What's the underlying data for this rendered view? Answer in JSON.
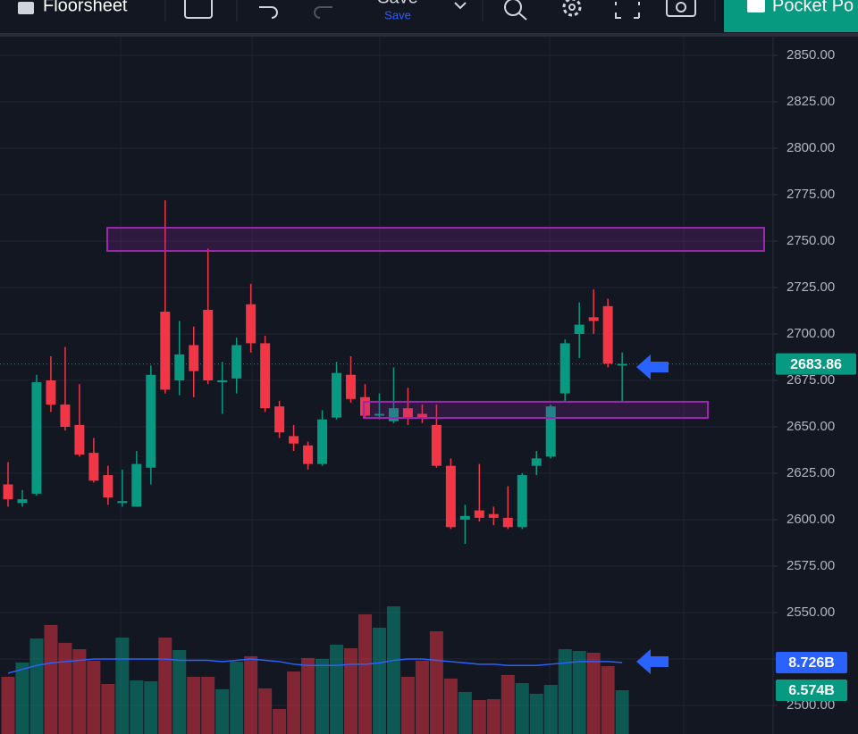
{
  "toolbar": {
    "floorsheet": "Floorsheet",
    "save_title": "Save",
    "save_subtitle": "Save",
    "pocket": "Pocket Po"
  },
  "chart_data": {
    "type": "candlestick",
    "open": [
      2619,
      2609,
      2614,
      2675,
      2662,
      2651,
      2636,
      2624,
      2609,
      2607,
      2628,
      2712,
      2675,
      2694,
      2713,
      2674,
      2676,
      2716,
      2695,
      2661,
      2645,
      2640,
      2630,
      2655,
      2678,
      2666,
      2656,
      2653,
      2660,
      2657,
      2651,
      2629,
      2600,
      2605,
      2603,
      2601,
      2596,
      2629,
      2634,
      2668,
      2700,
      2709,
      2715,
      2683
    ],
    "high": [
      2631,
      2616,
      2678,
      2688,
      2693,
      2673,
      2644,
      2629,
      2627,
      2637,
      2683,
      2772,
      2707,
      2704,
      2746,
      2685,
      2698,
      2727,
      2699,
      2664,
      2651,
      2642,
      2659,
      2685,
      2688,
      2673,
      2668,
      2682,
      2671,
      2662,
      2662,
      2633,
      2608,
      2630,
      2607,
      2618,
      2625,
      2637,
      2662,
      2697,
      2717,
      2724,
      2719,
      2690
    ],
    "low": [
      2607,
      2607,
      2613,
      2658,
      2648,
      2634,
      2620,
      2608,
      2607,
      2607,
      2619,
      2668,
      2667,
      2666,
      2673,
      2657,
      2668,
      2690,
      2658,
      2644,
      2637,
      2627,
      2629,
      2654,
      2663,
      2655,
      2654,
      2652,
      2651,
      2652,
      2628,
      2595,
      2587,
      2599,
      2597,
      2595,
      2595,
      2624,
      2633,
      2664,
      2687,
      2700,
      2682,
      2663
    ],
    "close": [
      2611,
      2611,
      2674,
      2662,
      2650,
      2635,
      2621,
      2612,
      2610,
      2630,
      2678,
      2670,
      2689,
      2680,
      2675,
      2675,
      2694,
      2695,
      2660,
      2647,
      2641,
      2630,
      2654,
      2679,
      2665,
      2656,
      2657,
      2660,
      2655,
      2655,
      2629,
      2596,
      2602,
      2601,
      2601,
      2596,
      2624,
      2633,
      2661,
      2695,
      2705,
      2707,
      2684,
      2683.86
    ],
    "value_labels": [
      null,
      null,
      null,
      null,
      null,
      null,
      null,
      null,
      null,
      null,
      null,
      null,
      null,
      null,
      null,
      null,
      null,
      null,
      null,
      null,
      null,
      null,
      null,
      null,
      null,
      null,
      null,
      null,
      null,
      null,
      null,
      null,
      null,
      null,
      null,
      null,
      null,
      null,
      null,
      null,
      null,
      null,
      null,
      "2683.86"
    ],
    "ylim": [
      2484.6,
      2860.6
    ],
    "yticks": [
      {
        "value": 2500,
        "label": "2500.00"
      },
      {
        "value": 2525,
        "label": "2525.00"
      },
      {
        "value": 2550,
        "label": "2550.00"
      },
      {
        "value": 2575,
        "label": "2575.00"
      },
      {
        "value": 2600,
        "label": "2600.00"
      },
      {
        "value": 2625,
        "label": "2625.00"
      },
      {
        "value": 2650,
        "label": "2650.00"
      },
      {
        "value": 2675,
        "label": "2675.00"
      },
      {
        "value": 2700,
        "label": "2700.00"
      },
      {
        "value": 2725,
        "label": "2725.00"
      },
      {
        "value": 2750,
        "label": "2750.00"
      },
      {
        "value": 2775,
        "label": "2775.00"
      },
      {
        "value": 2800,
        "label": "2800.00"
      },
      {
        "value": 2825,
        "label": "2825.00"
      },
      {
        "value": 2850,
        "label": "2850.00"
      }
    ],
    "grid": true,
    "up_color": "#089981",
    "down_color": "#f23645",
    "zones": [
      {
        "low": 2744.7,
        "high": 2757.2
      },
      {
        "low": 2654.8,
        "high": 2663.5
      }
    ],
    "zone_color": "#9c27b0",
    "volume": {
      "values": [
        7.62,
        8.73,
        10.6,
        11.65,
        10.26,
        9.77,
        8.87,
        7.06,
        10.67,
        7.34,
        7.27,
        10.67,
        9.7,
        7.62,
        7.62,
        6.65,
        8.8,
        9.22,
        6.72,
        5.12,
        8.03,
        9.08,
        9.01,
        10.12,
        9.84,
        12.48,
        11.44,
        13.1,
        7.62,
        8.87,
        11.16,
        7.48,
        6.44,
        5.81,
        5.88,
        7.76,
        7.13,
        6.3,
        6.99,
        9.77,
        9.63,
        9.49,
        8.45,
        6.574
      ],
      "value_labels": [
        null,
        null,
        null,
        null,
        null,
        null,
        null,
        null,
        null,
        null,
        null,
        null,
        null,
        null,
        null,
        null,
        null,
        null,
        null,
        null,
        null,
        null,
        null,
        null,
        null,
        null,
        null,
        null,
        null,
        null,
        null,
        null,
        null,
        null,
        null,
        null,
        null,
        null,
        null,
        null,
        null,
        null,
        null,
        "6.574B"
      ],
      "y2lim": [
        3.17,
        57.48
      ],
      "ma": {
        "color": "#2962ff",
        "values": [
          7.9,
          8.2,
          8.5,
          8.7,
          8.8,
          8.9,
          9.0,
          9.0,
          9.0,
          9.0,
          9.0,
          9.0,
          8.9,
          8.9,
          8.9,
          8.8,
          8.9,
          9.0,
          8.9,
          8.8,
          8.6,
          8.5,
          8.5,
          8.5,
          8.6,
          8.6,
          8.7,
          8.9,
          9.0,
          9.0,
          8.9,
          8.8,
          8.7,
          8.6,
          8.6,
          8.5,
          8.5,
          8.5,
          8.6,
          8.7,
          8.8,
          8.8,
          8.8,
          8.726
        ],
        "value_labels": [
          null,
          null,
          null,
          null,
          null,
          null,
          null,
          null,
          null,
          null,
          null,
          null,
          null,
          null,
          null,
          null,
          null,
          null,
          null,
          null,
          null,
          null,
          null,
          null,
          null,
          null,
          null,
          null,
          null,
          null,
          null,
          null,
          null,
          null,
          null,
          null,
          null,
          null,
          null,
          null,
          null,
          null,
          null,
          "8.726B"
        ]
      }
    }
  }
}
